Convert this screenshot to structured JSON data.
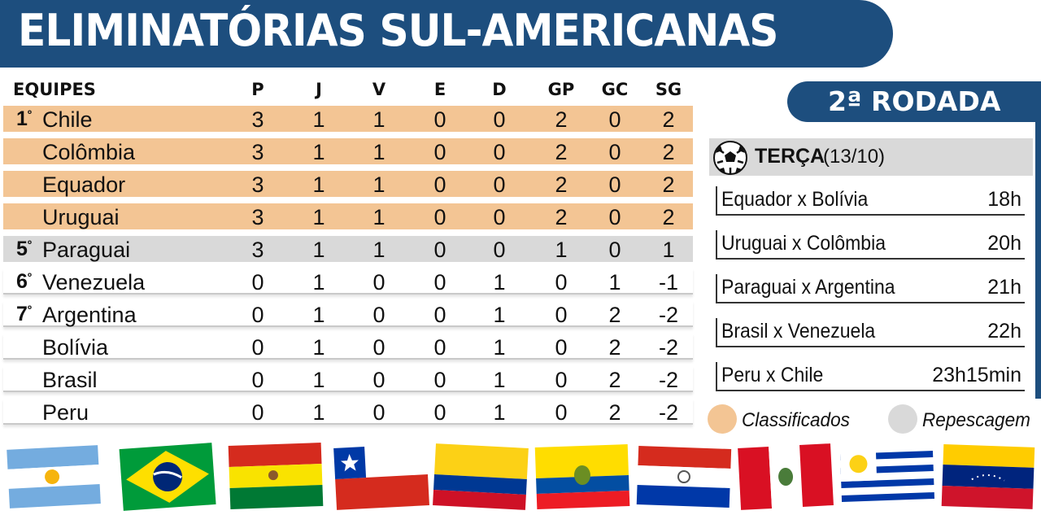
{
  "title": "ELIMINATÓRIAS SUL-AMERICANAS",
  "round": "2ª RODADA",
  "colors": {
    "primary": "#1d4e7e",
    "classified": "#f3c594",
    "playoff": "#d9d9d9"
  },
  "standings": {
    "headers": [
      "EQUIPES",
      "P",
      "J",
      "V",
      "E",
      "D",
      "GP",
      "GC",
      "SG"
    ],
    "rows": [
      {
        "pos": "1",
        "team": "Chile",
        "p": "3",
        "j": "1",
        "v": "1",
        "e": "0",
        "d": "0",
        "gp": "2",
        "gc": "0",
        "sg": "2"
      },
      {
        "pos": "",
        "team": "Colômbia",
        "p": "3",
        "j": "1",
        "v": "1",
        "e": "0",
        "d": "0",
        "gp": "2",
        "gc": "0",
        "sg": "2"
      },
      {
        "pos": "",
        "team": "Equador",
        "p": "3",
        "j": "1",
        "v": "1",
        "e": "0",
        "d": "0",
        "gp": "2",
        "gc": "0",
        "sg": "2"
      },
      {
        "pos": "",
        "team": "Uruguai",
        "p": "3",
        "j": "1",
        "v": "1",
        "e": "0",
        "d": "0",
        "gp": "2",
        "gc": "0",
        "sg": "2"
      },
      {
        "pos": "5",
        "team": "Paraguai",
        "p": "3",
        "j": "1",
        "v": "1",
        "e": "0",
        "d": "0",
        "gp": "1",
        "gc": "0",
        "sg": "1"
      },
      {
        "pos": "6",
        "team": "Venezuela",
        "p": "0",
        "j": "1",
        "v": "0",
        "e": "0",
        "d": "1",
        "gp": "0",
        "gc": "1",
        "sg": "-1"
      },
      {
        "pos": "7",
        "team": "Argentina",
        "p": "0",
        "j": "1",
        "v": "0",
        "e": "0",
        "d": "1",
        "gp": "0",
        "gc": "2",
        "sg": "-2"
      },
      {
        "pos": "",
        "team": "Bolívia",
        "p": "0",
        "j": "1",
        "v": "0",
        "e": "0",
        "d": "1",
        "gp": "0",
        "gc": "2",
        "sg": "-2"
      },
      {
        "pos": "",
        "team": "Brasil",
        "p": "0",
        "j": "1",
        "v": "0",
        "e": "0",
        "d": "1",
        "gp": "0",
        "gc": "2",
        "sg": "-2"
      },
      {
        "pos": "",
        "team": "Peru",
        "p": "0",
        "j": "1",
        "v": "0",
        "e": "0",
        "d": "1",
        "gp": "0",
        "gc": "2",
        "sg": "-2"
      }
    ]
  },
  "schedule": {
    "day": "TERÇA",
    "date": "(13/10)",
    "icon": "soccer-ball-icon",
    "matches": [
      {
        "teams": "Equador x Bolívia",
        "time": "18h"
      },
      {
        "teams": "Uruguai x Colômbia",
        "time": "20h"
      },
      {
        "teams": "Paraguai x Argentina",
        "time": "21h"
      },
      {
        "teams": "Brasil x Venezuela",
        "time": "22h"
      },
      {
        "teams": "Peru x Chile",
        "time": "23h15min"
      }
    ]
  },
  "legend": {
    "classified": "Classificados",
    "playoff": "Repescagem"
  },
  "flags": [
    "Argentina",
    "Brasil",
    "Bolívia",
    "Chile",
    "Colômbia",
    "Equador",
    "Paraguai",
    "Peru",
    "Uruguai",
    "Venezuela"
  ]
}
